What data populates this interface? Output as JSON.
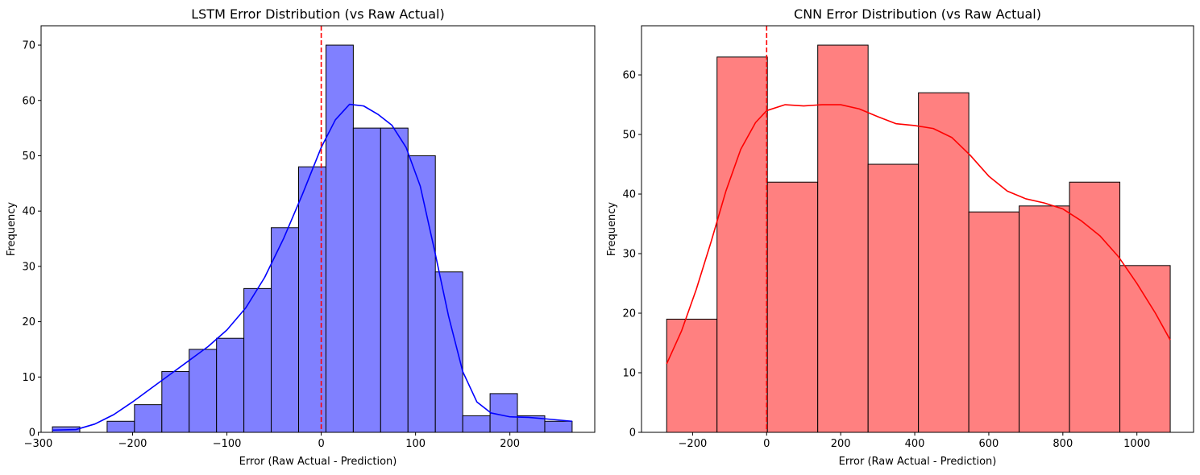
{
  "chart_data": [
    {
      "type": "histogram",
      "title": "LSTM Error Distribution (vs Raw Actual)",
      "xlabel": "Error (Raw Actual - Prediction)",
      "ylabel": "Frequency",
      "xlim": [
        -297,
        290
      ],
      "ylim": [
        0,
        73.5
      ],
      "xticks": [
        -300,
        -200,
        -100,
        0,
        100,
        200
      ],
      "yticks": [
        0,
        10,
        20,
        30,
        40,
        50,
        60,
        70
      ],
      "grid": false,
      "bar_color": "#8080ff",
      "kde_color": "#0000ff",
      "vline": {
        "x": 0,
        "color": "#ff0000",
        "style": "dashed"
      },
      "bins": {
        "edges": [
          -285,
          -256,
          -227,
          -198,
          -169,
          -140,
          -111,
          -82,
          -53,
          -24,
          5,
          34,
          63,
          92,
          121,
          150,
          179,
          208,
          237,
          266
        ],
        "counts": [
          1,
          0,
          2,
          5,
          11,
          15,
          17,
          26,
          37,
          48,
          70,
          55,
          55,
          50,
          29,
          3,
          7,
          3,
          2
        ]
      },
      "kde": {
        "x": [
          -285,
          -260,
          -240,
          -220,
          -200,
          -180,
          -160,
          -140,
          -120,
          -100,
          -80,
          -60,
          -40,
          -20,
          0,
          15,
          30,
          45,
          60,
          75,
          90,
          105,
          120,
          135,
          150,
          165,
          180,
          200,
          220,
          240,
          266
        ],
        "y": [
          0.4,
          0.5,
          1.5,
          3.2,
          5.5,
          8,
          10.5,
          13,
          15.5,
          18.5,
          22.5,
          28,
          35,
          43,
          51.5,
          56.5,
          59.3,
          59,
          57.5,
          55.5,
          51.5,
          44.5,
          33,
          21,
          11,
          5.5,
          3.5,
          2.8,
          2.7,
          2.4,
          2
        ]
      }
    },
    {
      "type": "histogram",
      "title": "CNN Error Distribution (vs Raw Actual)",
      "xlabel": "Error (Raw Actual - Prediction)",
      "ylabel": "Frequency",
      "xlim": [
        -338,
        1153
      ],
      "ylim": [
        0,
        68.25
      ],
      "xticks": [
        -200,
        0,
        200,
        400,
        600,
        800,
        1000
      ],
      "yticks": [
        0,
        10,
        20,
        30,
        40,
        50,
        60
      ],
      "grid": false,
      "bar_color": "#ff8080",
      "kde_color": "#ff0000",
      "vline": {
        "x": 0,
        "color": "#ff0000",
        "style": "dashed"
      },
      "bins": {
        "edges": [
          -270,
          -134,
          2,
          138,
          274,
          410,
          546,
          682,
          818,
          954,
          1090
        ],
        "counts": [
          19,
          63,
          42,
          65,
          45,
          57,
          37,
          38,
          42,
          28
        ]
      },
      "kde": {
        "x": [
          -270,
          -230,
          -190,
          -150,
          -110,
          -70,
          -30,
          0,
          50,
          100,
          150,
          200,
          250,
          300,
          350,
          400,
          450,
          500,
          550,
          600,
          650,
          700,
          750,
          800,
          850,
          900,
          950,
          1000,
          1050,
          1090
        ],
        "y": [
          11.5,
          17,
          24,
          32,
          40.5,
          47.5,
          52,
          54,
          55,
          54.8,
          55,
          55,
          54.3,
          53,
          51.8,
          51.5,
          51,
          49.5,
          46.5,
          43,
          40.5,
          39.2,
          38.5,
          37.5,
          35.5,
          33,
          29.5,
          25,
          20,
          15.5
        ]
      }
    }
  ]
}
